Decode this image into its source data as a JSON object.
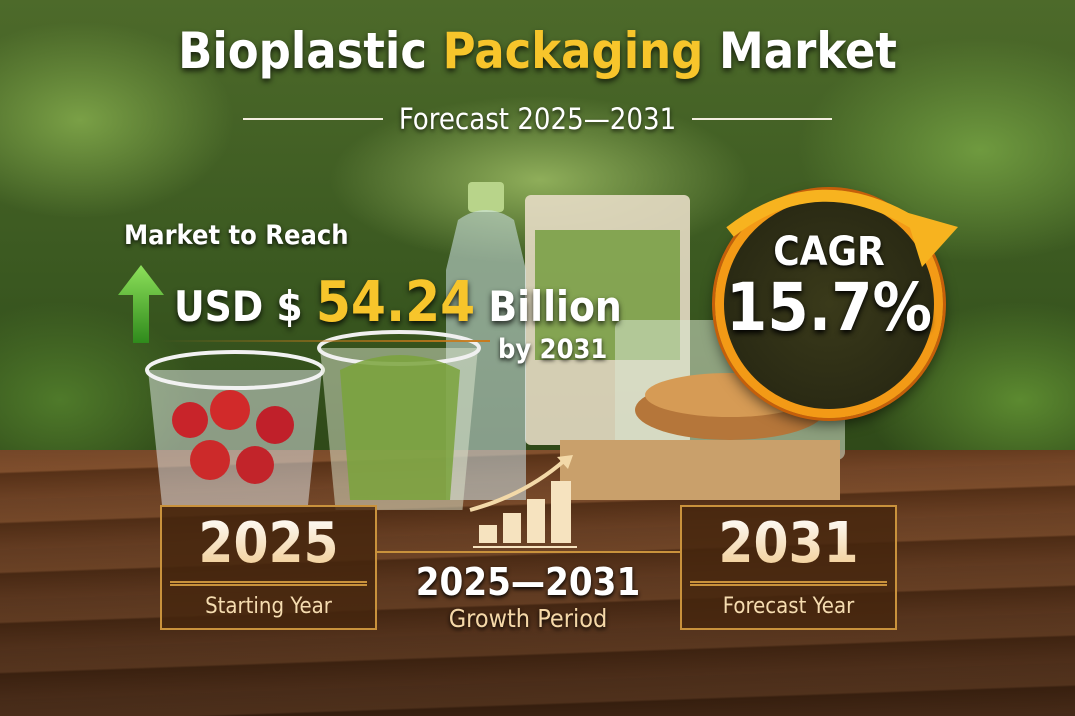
{
  "header": {
    "title_part1": "Bioplastic",
    "title_highlight": "Packaging",
    "title_part2": "Market",
    "subtitle": "Forecast 2025—2031"
  },
  "market": {
    "lead": "Market to Reach",
    "currency": "USD $",
    "value": "54.24",
    "unit": "Billion",
    "by": "by 2031"
  },
  "cagr": {
    "label": "CAGR",
    "value": "15.7%"
  },
  "timeline": {
    "start": {
      "year": "2025",
      "label": "Starting Year"
    },
    "period": {
      "range": "2025—2031",
      "label": "Growth Period"
    },
    "end": {
      "year": "2031",
      "label": "Forecast Year"
    }
  },
  "colors": {
    "accent": "#f7c52b",
    "cagr_ring": "#f39a16",
    "box_border": "#c9923c",
    "arrow": "#4caf2a"
  }
}
